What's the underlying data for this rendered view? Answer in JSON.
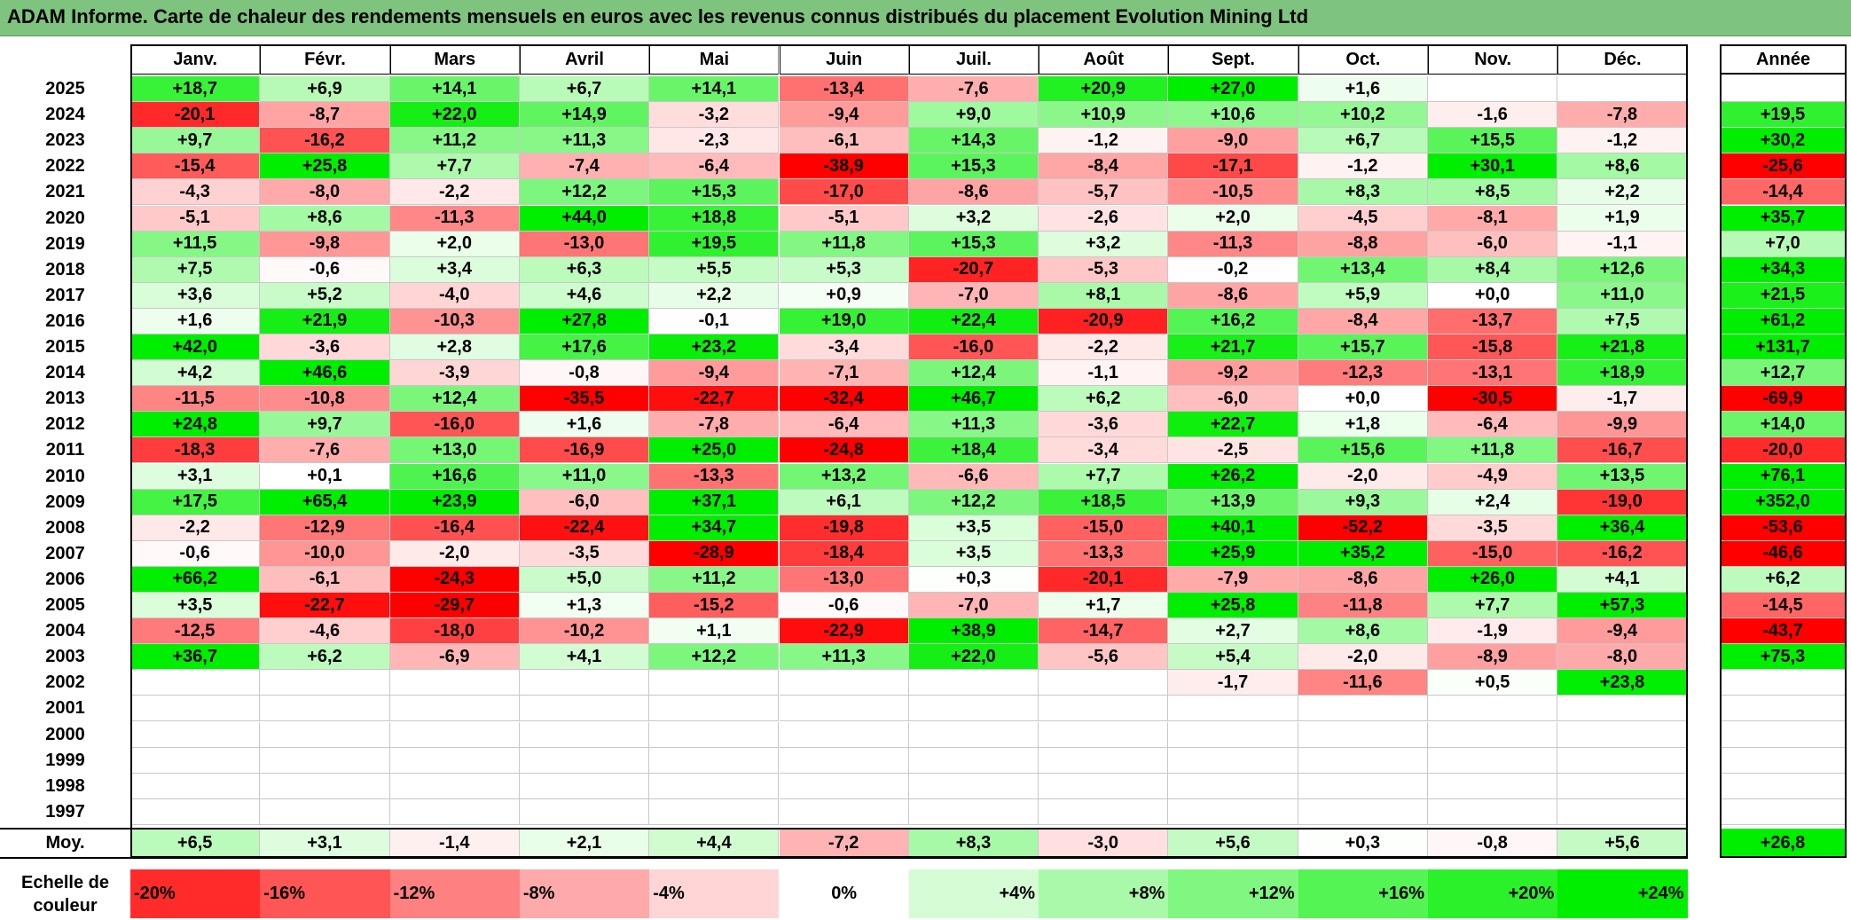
{
  "title": "ADAM Informe. Carte de chaleur des rendements mensuels en euros avec les revenus connus distribués du placement Evolution Mining Ltd",
  "chart_data": {
    "type": "heatmap",
    "title": "ADAM Informe. Carte de chaleur des rendements mensuels en euros avec les revenus connus distribués du placement Evolution Mining Ltd",
    "months": [
      "Janv.",
      "Févr.",
      "Mars",
      "Avril",
      "Mai",
      "Juin",
      "Juil.",
      "Août",
      "Sept.",
      "Oct.",
      "Nov.",
      "Déc."
    ],
    "annual_label": "Année",
    "years": [
      2025,
      2024,
      2023,
      2022,
      2021,
      2020,
      2019,
      2018,
      2017,
      2016,
      2015,
      2014,
      2013,
      2012,
      2011,
      2010,
      2009,
      2008,
      2007,
      2006,
      2005,
      2004,
      2003,
      2002,
      2001,
      2000,
      1999,
      1998,
      1997
    ],
    "values": [
      [
        "+18,7",
        "+6,9",
        "+14,1",
        "+6,7",
        "+14,1",
        "-13,4",
        "-7,6",
        "+20,9",
        "+27,0",
        "+1,6",
        "",
        ""
      ],
      [
        "-20,1",
        "-8,7",
        "+22,0",
        "+14,9",
        "-3,2",
        "-9,4",
        "+9,0",
        "+10,9",
        "+10,6",
        "+10,2",
        "-1,6",
        "-7,8"
      ],
      [
        "+9,7",
        "-16,2",
        "+11,2",
        "+11,3",
        "-2,3",
        "-6,1",
        "+14,3",
        "-1,2",
        "-9,0",
        "+6,7",
        "+15,5",
        "-1,2"
      ],
      [
        "-15,4",
        "+25,8",
        "+7,7",
        "-7,4",
        "-6,4",
        "-38,9",
        "+15,3",
        "-8,4",
        "-17,1",
        "-1,2",
        "+30,1",
        "+8,6"
      ],
      [
        "-4,3",
        "-8,0",
        "-2,2",
        "+12,2",
        "+15,3",
        "-17,0",
        "-8,6",
        "-5,7",
        "-10,5",
        "+8,3",
        "+8,5",
        "+2,2"
      ],
      [
        "-5,1",
        "+8,6",
        "-11,3",
        "+44,0",
        "+18,8",
        "-5,1",
        "+3,2",
        "-2,6",
        "+2,0",
        "-4,5",
        "-8,1",
        "+1,9"
      ],
      [
        "+11,5",
        "-9,8",
        "+2,0",
        "-13,0",
        "+19,5",
        "+11,8",
        "+15,3",
        "+3,2",
        "-11,3",
        "-8,8",
        "-6,0",
        "-1,1"
      ],
      [
        "+7,5",
        "-0,6",
        "+3,4",
        "+6,3",
        "+5,5",
        "+5,3",
        "-20,7",
        "-5,3",
        "-0,2",
        "+13,4",
        "+8,4",
        "+12,6"
      ],
      [
        "+3,6",
        "+5,2",
        "-4,0",
        "+4,6",
        "+2,2",
        "+0,9",
        "-7,0",
        "+8,1",
        "-8,6",
        "+5,9",
        "+0,0",
        "+11,0"
      ],
      [
        "+1,6",
        "+21,9",
        "-10,3",
        "+27,8",
        "-0,1",
        "+19,0",
        "+22,4",
        "-20,9",
        "+16,2",
        "-8,4",
        "-13,7",
        "+7,5"
      ],
      [
        "+42,0",
        "-3,6",
        "+2,8",
        "+17,6",
        "+23,2",
        "-3,4",
        "-16,0",
        "-2,2",
        "+21,7",
        "+15,7",
        "-15,8",
        "+21,8"
      ],
      [
        "+4,2",
        "+46,6",
        "-3,9",
        "-0,8",
        "-9,4",
        "-7,1",
        "+12,4",
        "-1,1",
        "-9,2",
        "-12,3",
        "-13,1",
        "+18,9"
      ],
      [
        "-11,5",
        "-10,8",
        "+12,4",
        "-35,5",
        "-22,7",
        "-32,4",
        "+46,7",
        "+6,2",
        "-6,0",
        "+0,0",
        "-30,5",
        "-1,7"
      ],
      [
        "+24,8",
        "+9,7",
        "-16,0",
        "+1,6",
        "-7,8",
        "-6,4",
        "+11,3",
        "-3,6",
        "+22,7",
        "+1,8",
        "-6,4",
        "-9,9"
      ],
      [
        "-18,3",
        "-7,6",
        "+13,0",
        "-16,9",
        "+25,0",
        "-24,8",
        "+18,4",
        "-3,4",
        "-2,5",
        "+15,6",
        "+11,8",
        "-16,7"
      ],
      [
        "+3,1",
        "+0,1",
        "+16,6",
        "+11,0",
        "-13,3",
        "+13,2",
        "-6,6",
        "+7,7",
        "+26,2",
        "-2,0",
        "-4,9",
        "+13,5"
      ],
      [
        "+17,5",
        "+65,4",
        "+23,9",
        "-6,0",
        "+37,1",
        "+6,1",
        "+12,2",
        "+18,5",
        "+13,9",
        "+9,3",
        "+2,4",
        "-19,0"
      ],
      [
        "-2,2",
        "-12,9",
        "-16,4",
        "-22,4",
        "+34,7",
        "-19,8",
        "+3,5",
        "-15,0",
        "+40,1",
        "-52,2",
        "-3,5",
        "+36,4"
      ],
      [
        "-0,6",
        "-10,0",
        "-2,0",
        "-3,5",
        "-28,9",
        "-18,4",
        "+3,5",
        "-13,3",
        "+25,9",
        "+35,2",
        "-15,0",
        "-16,2"
      ],
      [
        "+66,2",
        "-6,1",
        "-24,3",
        "+5,0",
        "+11,2",
        "-13,0",
        "+0,3",
        "-20,1",
        "-7,9",
        "-8,6",
        "+26,0",
        "+4,1"
      ],
      [
        "+3,5",
        "-22,7",
        "-29,7",
        "+1,3",
        "-15,2",
        "-0,6",
        "-7,0",
        "+1,7",
        "+25,8",
        "-11,8",
        "+7,7",
        "+57,3"
      ],
      [
        "-12,5",
        "-4,6",
        "-18,0",
        "-10,2",
        "+1,1",
        "-22,9",
        "+38,9",
        "-14,7",
        "+2,7",
        "+8,6",
        "-1,9",
        "-9,4"
      ],
      [
        "+36,7",
        "+6,2",
        "-6,9",
        "+4,1",
        "+12,2",
        "+11,3",
        "+22,0",
        "-5,6",
        "+5,4",
        "-2,0",
        "-8,9",
        "-8,0"
      ],
      [
        "",
        "",
        "",
        "",
        "",
        "",
        "",
        "",
        "-1,7",
        "-11,6",
        "+0,5",
        "+23,8"
      ],
      [
        "",
        "",
        "",
        "",
        "",
        "",
        "",
        "",
        "",
        "",
        "",
        ""
      ],
      [
        "",
        "",
        "",
        "",
        "",
        "",
        "",
        "",
        "",
        "",
        "",
        ""
      ],
      [
        "",
        "",
        "",
        "",
        "",
        "",
        "",
        "",
        "",
        "",
        "",
        ""
      ],
      [
        "",
        "",
        "",
        "",
        "",
        "",
        "",
        "",
        "",
        "",
        "",
        ""
      ],
      [
        "",
        "",
        "",
        "",
        "",
        "",
        "",
        "",
        "",
        "",
        "",
        ""
      ]
    ],
    "annual": [
      "",
      "+19,5",
      "+30,2",
      "-25,6",
      "-14,4",
      "+35,7",
      "+7,0",
      "+34,3",
      "+21,5",
      "+61,2",
      "+131,7",
      "+12,7",
      "-69,9",
      "+14,0",
      "-20,0",
      "+76,1",
      "+352,0",
      "-53,6",
      "-46,6",
      "+6,2",
      "-14,5",
      "-43,7",
      "+75,3",
      "",
      "",
      "",
      "",
      "",
      ""
    ],
    "average_label": "Moy.",
    "average": [
      "+6,5",
      "+3,1",
      "-1,4",
      "+2,1",
      "+4,4",
      "-7,2",
      "+8,3",
      "-3,0",
      "+5,6",
      "+0,3",
      "-0,8",
      "+5,6"
    ],
    "average_annual": "+26,8",
    "scale_label": "Echelle de couleur",
    "scale": [
      "-20%",
      "-16%",
      "-12%",
      "-8%",
      "-4%",
      "0%",
      "+4%",
      "+8%",
      "+12%",
      "+16%",
      "+20%",
      "+24%"
    ],
    "scale_values": [
      -20,
      -16,
      -12,
      -8,
      -4,
      0,
      4,
      8,
      12,
      16,
      20,
      24
    ],
    "colors": {
      "negative_max": "#ff0000",
      "neutral": "#ffffff",
      "positive_max": "#00ee00",
      "title_bar": "#7ec37e"
    }
  }
}
